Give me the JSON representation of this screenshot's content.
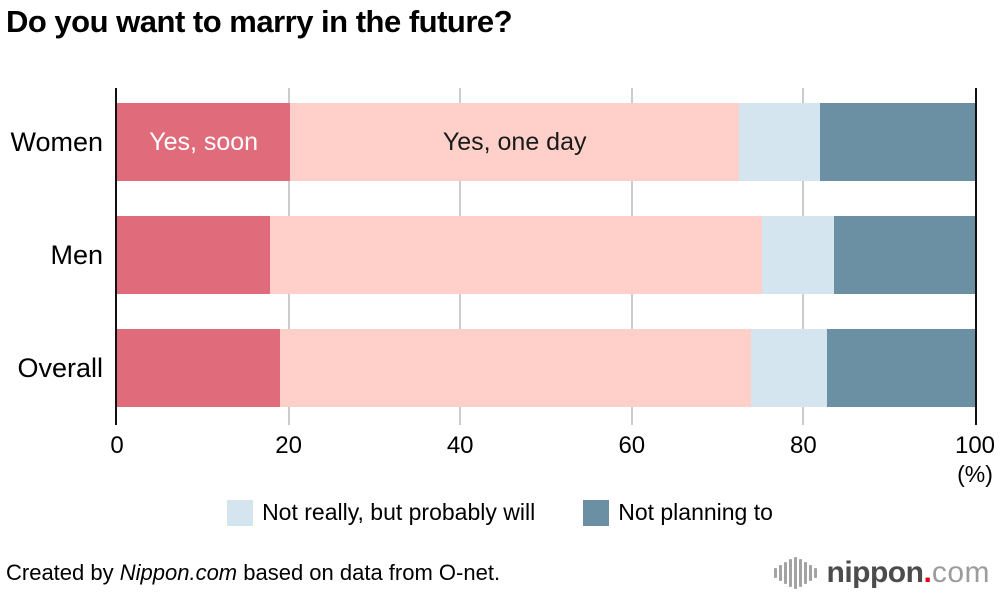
{
  "title": "Do you want to marry in the future?",
  "chart_data": {
    "type": "bar",
    "orientation": "horizontal",
    "stacked": true,
    "categories": [
      "Women",
      "Men",
      "Overall"
    ],
    "series": [
      {
        "name": "Yes, soon",
        "color": "#e06b7a",
        "values": [
          20.2,
          17.8,
          19.0
        ]
      },
      {
        "name": "Yes, one day",
        "color": "#ffd0ca",
        "values": [
          52.3,
          57.4,
          54.9
        ]
      },
      {
        "name": "Not really, but probably will",
        "color": "#d5e5f0",
        "values": [
          9.4,
          8.4,
          8.9
        ]
      },
      {
        "name": "Not planning to",
        "color": "#6b8fa3",
        "values": [
          18.1,
          16.4,
          17.2
        ]
      }
    ],
    "inline_labels": [
      {
        "row": 0,
        "series": 0,
        "text": "Yes, soon",
        "color": "#ffffff"
      },
      {
        "row": 0,
        "series": 1,
        "text": "Yes, one day",
        "color": "#1a1a1a"
      }
    ],
    "xlim": [
      0,
      100
    ],
    "x_ticks": [
      "0",
      "20",
      "40",
      "60",
      "80",
      "100"
    ],
    "x_unit_label": "(%)",
    "grid": "vertical",
    "gridline_ticks": [
      20,
      40,
      60,
      80
    ],
    "legend_position": "bottom",
    "legend_items": [
      {
        "label": "Not really, but probably will",
        "color": "#d5e5f0"
      },
      {
        "label": "Not planning to",
        "color": "#6b8fa3"
      }
    ]
  },
  "footer": {
    "credit_prefix": "Created by ",
    "credit_source": "Nippon.com",
    "credit_suffix": " based on data from O-net.",
    "logo": {
      "name": "nippon",
      "dot": ".",
      "tld": "com",
      "dot_color": "#e60012"
    }
  }
}
